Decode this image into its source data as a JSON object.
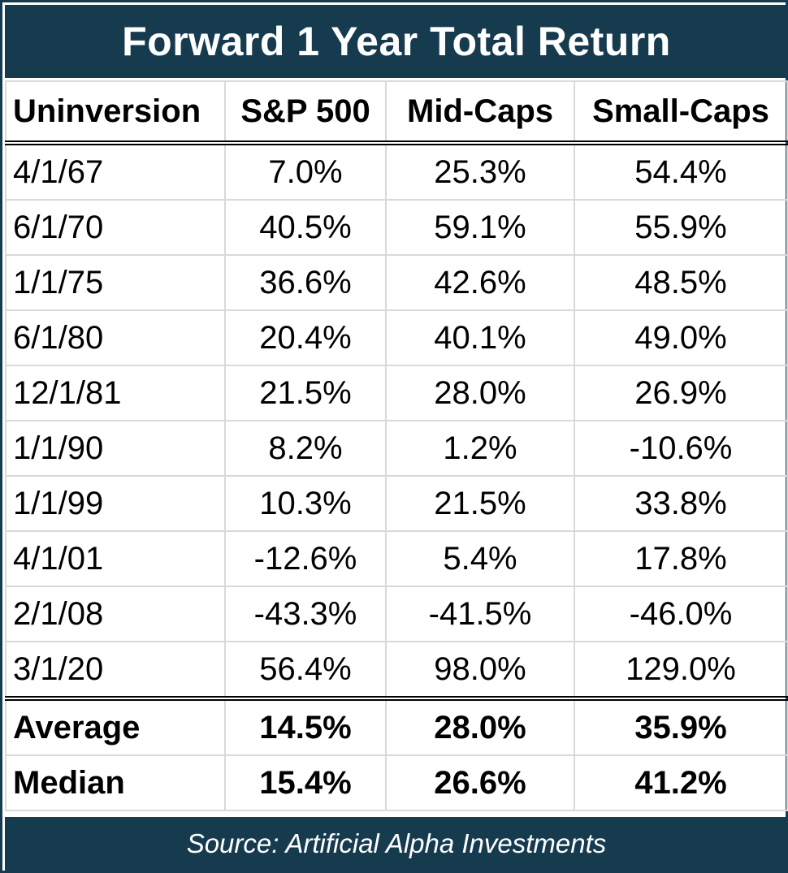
{
  "chart_data": {
    "type": "table",
    "title": "Forward 1 Year Total Return",
    "columns": [
      "Uninversion",
      "S&P 500",
      "Mid-Caps",
      "Small-Caps"
    ],
    "rows": [
      [
        "4/1/67",
        "7.0%",
        "25.3%",
        "54.4%"
      ],
      [
        "6/1/70",
        "40.5%",
        "59.1%",
        "55.9%"
      ],
      [
        "1/1/75",
        "36.6%",
        "42.6%",
        "48.5%"
      ],
      [
        "6/1/80",
        "20.4%",
        "40.1%",
        "49.0%"
      ],
      [
        "12/1/81",
        "21.5%",
        "28.0%",
        "26.9%"
      ],
      [
        "1/1/90",
        "8.2%",
        "1.2%",
        "-10.6%"
      ],
      [
        "1/1/99",
        "10.3%",
        "21.5%",
        "33.8%"
      ],
      [
        "4/1/01",
        "-12.6%",
        "5.4%",
        "17.8%"
      ],
      [
        "2/1/08",
        "-43.3%",
        "-41.5%",
        "-46.0%"
      ],
      [
        "3/1/20",
        "56.4%",
        "98.0%",
        "129.0%"
      ]
    ],
    "summary_rows": [
      [
        "Average",
        "14.5%",
        "28.0%",
        "35.9%"
      ],
      [
        "Median",
        "15.4%",
        "26.6%",
        "41.2%"
      ]
    ],
    "source": "Source: Artificial Alpha Investments"
  },
  "colors": {
    "header_band": "#163b4f",
    "grid": "#d9d9d9",
    "text": "#000000",
    "band_text": "#ffffff"
  }
}
